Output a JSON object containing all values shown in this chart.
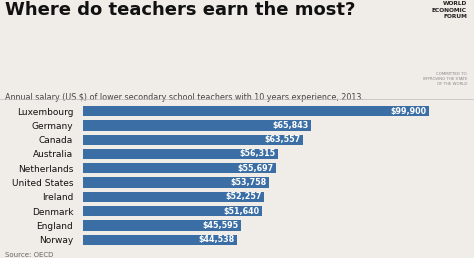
{
  "title": "Where do teachers earn the most?",
  "subtitle": "Annual salary (US $) of lower secondary school teachers with 10 years experience, 2013.",
  "source": "Source: OECD",
  "countries": [
    "Norway",
    "England",
    "Denmark",
    "Ireland",
    "United States",
    "Netherlands",
    "Australia",
    "Canada",
    "Germany",
    "Luxembourg"
  ],
  "values": [
    44538,
    45595,
    51640,
    52257,
    53758,
    55697,
    56315,
    63557,
    65843,
    99900
  ],
  "labels": [
    "$44,538",
    "$45,595",
    "$51,640",
    "$52,257",
    "$53,758",
    "$55,697",
    "$56,315",
    "$63,557",
    "$65,843",
    "$99,900"
  ],
  "bar_color": "#3a6ea5",
  "text_color_inside": "#ffffff",
  "background_color": "#f0ede8",
  "title_color": "#111111",
  "subtitle_color": "#444444",
  "source_color": "#666666",
  "xlim": [
    0,
    108000
  ],
  "bar_height": 0.72,
  "title_fontsize": 13,
  "subtitle_fontsize": 5.8,
  "label_fontsize": 5.8,
  "ytick_fontsize": 6.5,
  "source_fontsize": 5.0
}
